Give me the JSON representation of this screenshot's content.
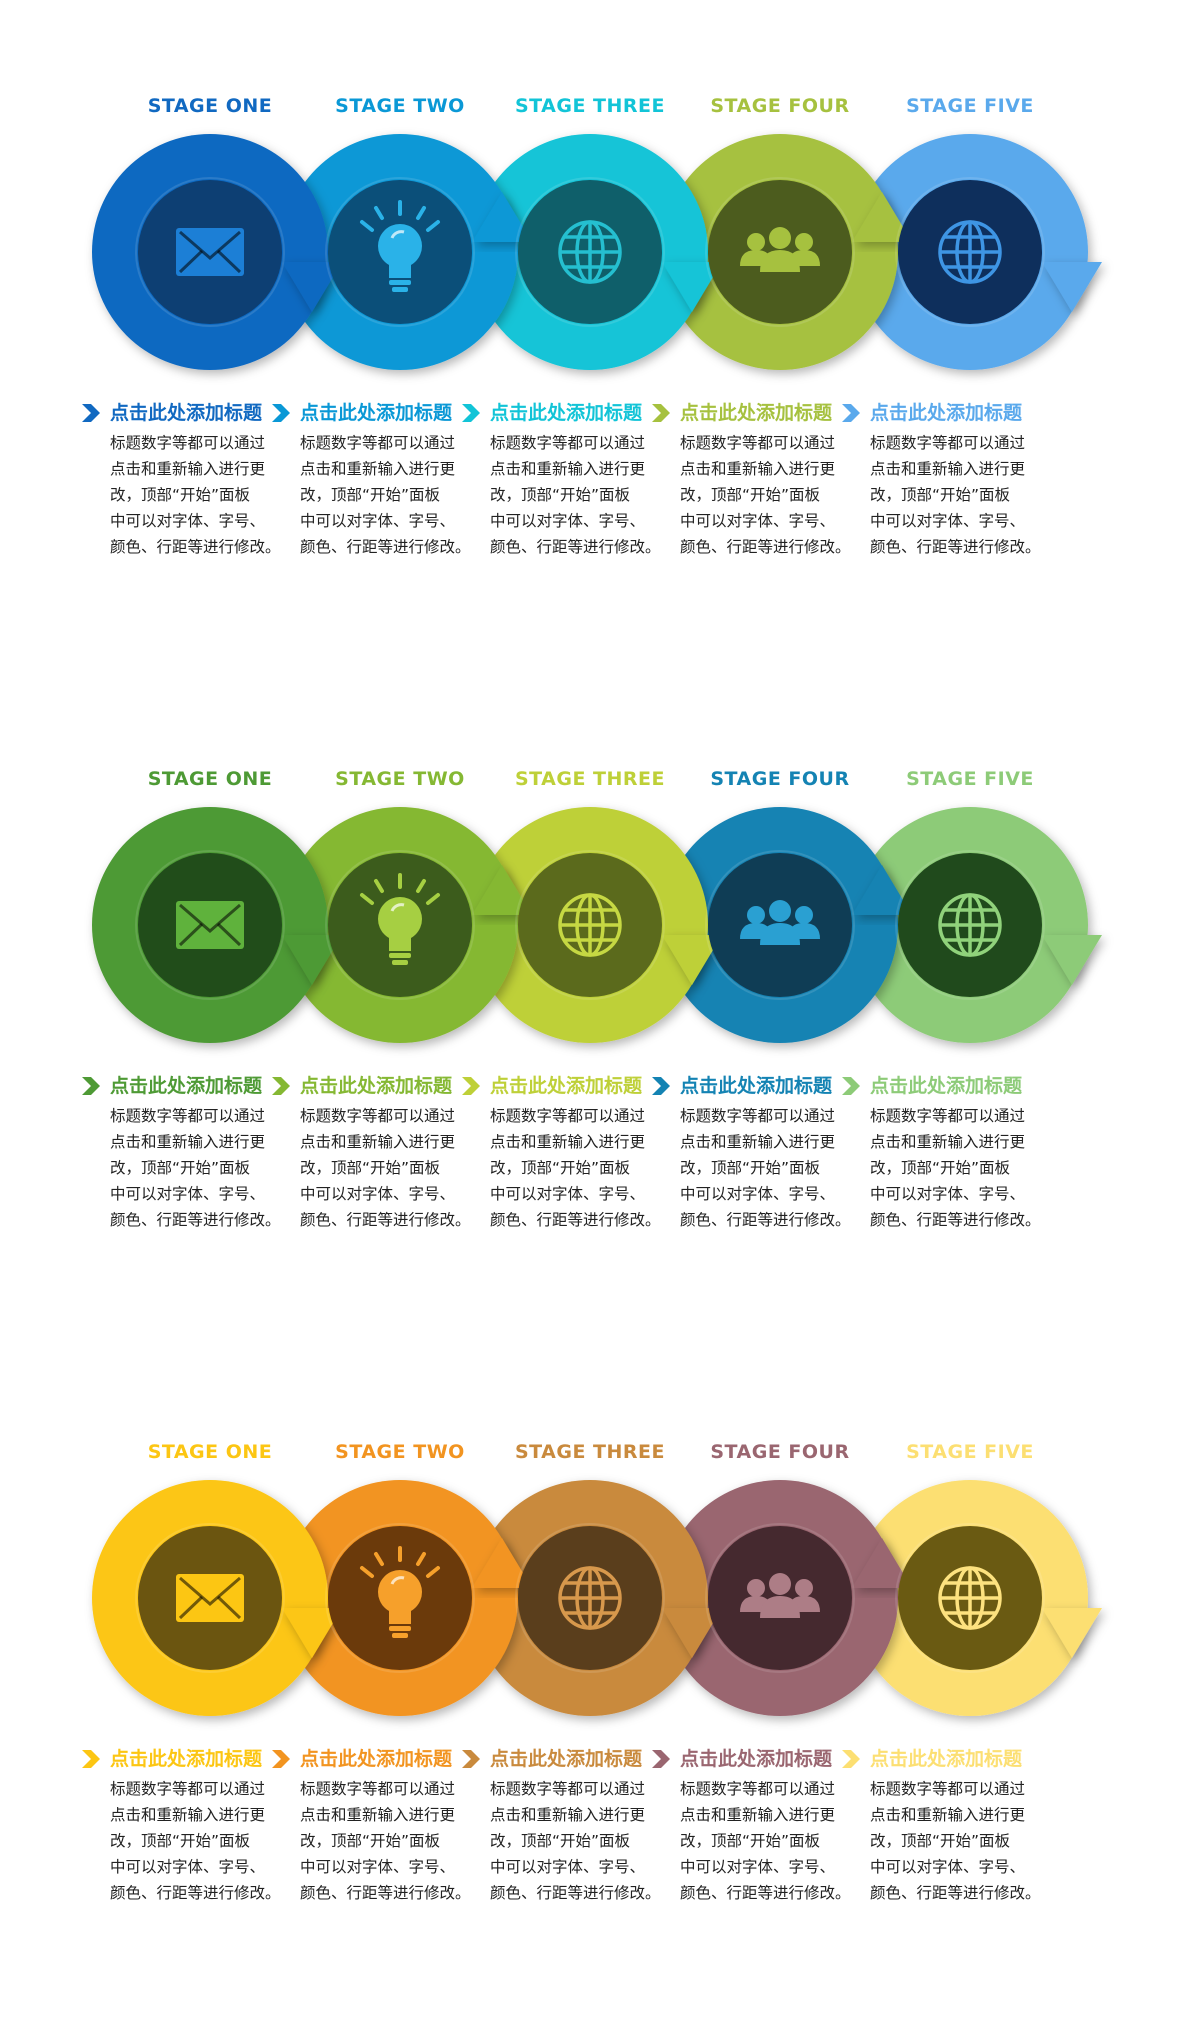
{
  "labels": [
    "STAGE ONE",
    "STAGE TWO",
    "STAGE THREE",
    "STAGE FOUR",
    "STAGE FIVE"
  ],
  "icons": [
    "envelope-icon",
    "lightbulb-icon",
    "globe-icon",
    "people-icon",
    "globe-icon"
  ],
  "caption_title": "点击此处添加标题",
  "caption_lines": [
    "标题数字等都可以通过",
    "点击和重新输入进行更",
    "改，顶部“开始”面板",
    "中可以对字体、字号、",
    "颜色、行距等进行修改。"
  ],
  "rows": [
    {
      "ring_colors": [
        "#1169c1",
        "#0a98d6",
        "#12c4d7",
        "#a6c13f",
        "#5aa9ec"
      ],
      "inner_colors": [
        "#0d3f73",
        "#0b4f79",
        "#0f5f6a",
        "#4c5c1e",
        "#0e2f5c"
      ],
      "icon_colors": [
        "#1c7fd6",
        "#2ab2e8",
        "#25bfd0",
        "#a6c13f",
        "#3e95e4"
      ]
    },
    {
      "ring_colors": [
        "#4e9a35",
        "#85b833",
        "#bed038",
        "#1483b3",
        "#8dcb78"
      ],
      "inner_colors": [
        "#214d1a",
        "#3c5c1c",
        "#5b6a1c",
        "#0f3d55",
        "#204a1c"
      ],
      "icon_colors": [
        "#5fb23c",
        "#a6cf42",
        "#c6d843",
        "#2aa0d2",
        "#90d27b"
      ]
    },
    {
      "ring_colors": [
        "#fcc613",
        "#f29420",
        "#c98a3d",
        "#9a6670",
        "#fcdf72"
      ],
      "inner_colors": [
        "#6b5510",
        "#6b3a0b",
        "#5a3e1c",
        "#45292f",
        "#6a5a12"
      ],
      "icon_colors": [
        "#fcc613",
        "#f6a02b",
        "#d7984c",
        "#ad7d86",
        "#fde27f"
      ]
    }
  ]
}
